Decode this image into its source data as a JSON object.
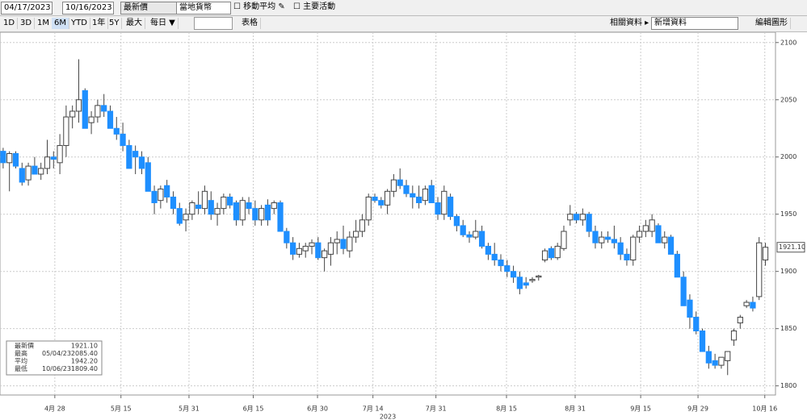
{
  "toolbar": {
    "start_date": "04/17/2023",
    "end_date": "10/16/2023",
    "field": "最新價",
    "currency": "當地貨幣",
    "moving_avg": "移動平均",
    "events": "主要活動",
    "ranges": [
      "1D",
      "3D",
      "1M",
      "6M",
      "YTD",
      "1年",
      "5Y",
      "最大"
    ],
    "frequency": "每日 ▼",
    "table": "表格",
    "related": "相關資料 ▸",
    "add_data": "新增資料",
    "edit": "編輯圖形"
  },
  "chart_data": {
    "type": "candlestick",
    "up_color": "#ffffff",
    "down_color": "#1e8fff",
    "grid": true,
    "xlim": [
      -0.5,
      122.6
    ],
    "ylim": [
      1792,
      2109
    ],
    "yticks": [
      1800,
      1850,
      1900,
      1950,
      2000,
      2050,
      2100
    ],
    "xticks": [
      {
        "value": 8.2,
        "label": "4月 28"
      },
      {
        "value": 18.7,
        "label": "5月 15"
      },
      {
        "value": 29.5,
        "label": "5月 31"
      },
      {
        "value": 39.7,
        "label": "6月 15"
      },
      {
        "value": 49.9,
        "label": "6月 30"
      },
      {
        "value": 58.7,
        "label": "7月 14"
      },
      {
        "value": 68.7,
        "label": "7月 31"
      },
      {
        "value": 79.9,
        "label": "8月 15"
      },
      {
        "value": 90.8,
        "label": "8月 31"
      },
      {
        "value": 101.2,
        "label": "9月 15"
      },
      {
        "value": 110.3,
        "label": "9月 29"
      },
      {
        "value": 120.9,
        "label": "10月 16"
      }
    ],
    "x_year": "2023",
    "last_label": {
      "value": 1921.1,
      "label": "1921.10"
    },
    "legend": [
      {
        "name": "最新價",
        "date": null,
        "value": {
          "value": 1921.1,
          "label": "1921.10"
        }
      },
      {
        "name": "最高",
        "date": "05/04/23",
        "value": {
          "value": 2085.4,
          "label": "2085.40"
        }
      },
      {
        "name": "平均",
        "date": null,
        "value": {
          "value": 1942.2,
          "label": "1942.20"
        }
      },
      {
        "name": "最低",
        "date": "10/06/23",
        "value": {
          "value": 1809.4,
          "label": "1809.40"
        }
      }
    ],
    "ohlc": [
      [
        2005,
        2008,
        1990,
        1995
      ],
      [
        1995,
        2005,
        1970,
        2003
      ],
      [
        2003,
        2005,
        1990,
        1992
      ],
      [
        1990,
        1995,
        1975,
        1978
      ],
      [
        1980,
        1995,
        1975,
        1992
      ],
      [
        1992,
        2000,
        1985,
        1985
      ],
      [
        1985,
        1995,
        1980,
        1990
      ],
      [
        1990,
        2015,
        1985,
        2000
      ],
      [
        2000,
        2005,
        1990,
        1998
      ],
      [
        1995,
        2020,
        1985,
        2010
      ],
      [
        2010,
        2045,
        2000,
        2035
      ],
      [
        2035,
        2045,
        2025,
        2040
      ],
      [
        2040,
        2085.4,
        2030,
        2050
      ],
      [
        2058,
        2060,
        2025,
        2025
      ],
      [
        2030,
        2040,
        2020,
        2035
      ],
      [
        2035,
        2050,
        2030,
        2045
      ],
      [
        2045,
        2055,
        2035,
        2040
      ],
      [
        2040,
        2045,
        2025,
        2025
      ],
      [
        2025,
        2035,
        2015,
        2020
      ],
      [
        2020,
        2030,
        2005,
        2010
      ],
      [
        2010,
        2015,
        1990,
        1990
      ],
      [
        2005,
        2010,
        1985,
        2000
      ],
      [
        2000,
        2005,
        1985,
        1990
      ],
      [
        1995,
        2000,
        1970,
        1970
      ],
      [
        1970,
        1975,
        1950,
        1960
      ],
      [
        1962,
        1975,
        1955,
        1972
      ],
      [
        1975,
        1980,
        1960,
        1965
      ],
      [
        1965,
        1970,
        1950,
        1955
      ],
      [
        1955,
        1960,
        1940,
        1942
      ],
      [
        1945,
        1955,
        1935,
        1950
      ],
      [
        1950,
        1962,
        1945,
        1960
      ],
      [
        1958,
        1970,
        1950,
        1955
      ],
      [
        1955,
        1975,
        1950,
        1970
      ],
      [
        1962,
        1970,
        1945,
        1950
      ],
      [
        1950,
        1960,
        1940,
        1955
      ],
      [
        1955,
        1968,
        1950,
        1965
      ],
      [
        1965,
        1968,
        1955,
        1958
      ],
      [
        1960,
        1962,
        1940,
        1945
      ],
      [
        1945,
        1965,
        1940,
        1962
      ],
      [
        1960,
        1965,
        1950,
        1955
      ],
      [
        1955,
        1962,
        1940,
        1945
      ],
      [
        1945,
        1958,
        1940,
        1955
      ],
      [
        1958,
        1963,
        1940,
        1945
      ],
      [
        1955,
        1962,
        1950,
        1960
      ],
      [
        1960,
        1962,
        1935,
        1935
      ],
      [
        1935,
        1938,
        1920,
        1925
      ],
      [
        1925,
        1930,
        1910,
        1915
      ],
      [
        1915,
        1925,
        1912,
        1920
      ],
      [
        1918,
        1925,
        1912,
        1922
      ],
      [
        1922,
        1928,
        1915,
        1925
      ],
      [
        1925,
        1930,
        1910,
        1912
      ],
      [
        1912,
        1920,
        1900,
        1918
      ],
      [
        1915,
        1930,
        1905,
        1925
      ],
      [
        1925,
        1935,
        1915,
        1928
      ],
      [
        1928,
        1940,
        1915,
        1920
      ],
      [
        1918,
        1935,
        1912,
        1930
      ],
      [
        1930,
        1945,
        1925,
        1935
      ],
      [
        1935,
        1950,
        1930,
        1945
      ],
      [
        1945,
        1968,
        1940,
        1965
      ],
      [
        1965,
        1968,
        1960,
        1962
      ],
      [
        1962,
        1965,
        1955,
        1958
      ],
      [
        1958,
        1972,
        1950,
        1970
      ],
      [
        1970,
        1985,
        1965,
        1980
      ],
      [
        1980,
        1990,
        1972,
        1975
      ],
      [
        1975,
        1980,
        1965,
        1968
      ],
      [
        1968,
        1975,
        1955,
        1965
      ],
      [
        1965,
        1975,
        1955,
        1960
      ],
      [
        1962,
        1975,
        1958,
        1972
      ],
      [
        1975,
        1980,
        1960,
        1960
      ],
      [
        1960,
        1965,
        1945,
        1950
      ],
      [
        1950,
        1975,
        1945,
        1970
      ],
      [
        1965,
        1968,
        1945,
        1948
      ],
      [
        1948,
        1950,
        1935,
        1940
      ],
      [
        1940,
        1945,
        1930,
        1932
      ],
      [
        1932,
        1935,
        1925,
        1930
      ],
      [
        1930,
        1945,
        1928,
        1935
      ],
      [
        1935,
        1940,
        1920,
        1922
      ],
      [
        1922,
        1925,
        1910,
        1915
      ],
      [
        1915,
        1925,
        1905,
        1910
      ],
      [
        1910,
        1915,
        1900,
        1905
      ],
      [
        1905,
        1910,
        1895,
        1900
      ],
      [
        1900,
        1905,
        1890,
        1895
      ],
      [
        1895,
        1900,
        1880,
        1885
      ],
      [
        1890,
        1895,
        1885,
        1888
      ],
      [
        1892,
        1895,
        1890,
        1893
      ],
      [
        1895,
        1897,
        1892,
        1896
      ],
      [
        1910,
        1920,
        1908,
        1918
      ],
      [
        1920,
        1922,
        1910,
        1912
      ],
      [
        1912,
        1925,
        1910,
        1922
      ],
      [
        1920,
        1940,
        1918,
        1935
      ],
      [
        1945,
        1958,
        1940,
        1950
      ],
      [
        1950,
        1952,
        1942,
        1945
      ],
      [
        1945,
        1955,
        1940,
        1950
      ],
      [
        1950,
        1952,
        1930,
        1935
      ],
      [
        1935,
        1940,
        1920,
        1925
      ],
      [
        1925,
        1935,
        1920,
        1930
      ],
      [
        1930,
        1935,
        1925,
        1928
      ],
      [
        1928,
        1940,
        1920,
        1925
      ],
      [
        1925,
        1930,
        1910,
        1915
      ],
      [
        1915,
        1920,
        1905,
        1910
      ],
      [
        1910,
        1932,
        1905,
        1930
      ],
      [
        1930,
        1940,
        1925,
        1935
      ],
      [
        1935,
        1945,
        1930,
        1940
      ],
      [
        1935,
        1950,
        1930,
        1945
      ],
      [
        1940,
        1942,
        1925,
        1925
      ],
      [
        1925,
        1935,
        1920,
        1930
      ],
      [
        1930,
        1932,
        1915,
        1915
      ],
      [
        1915,
        1918,
        1895,
        1895
      ],
      [
        1895,
        1900,
        1870,
        1870
      ],
      [
        1875,
        1880,
        1850,
        1860
      ],
      [
        1860,
        1865,
        1845,
        1848
      ],
      [
        1848,
        1850,
        1830,
        1830
      ],
      [
        1830,
        1835,
        1815,
        1820
      ],
      [
        1822,
        1828,
        1815,
        1818
      ],
      [
        1818,
        1825,
        1815,
        1825
      ],
      [
        1822,
        1830,
        1809.4,
        1830
      ],
      [
        1840,
        1850,
        1835,
        1848
      ],
      [
        1855,
        1862,
        1850,
        1860
      ],
      [
        1870,
        1875,
        1868,
        1873
      ],
      [
        1873,
        1878,
        1865,
        1868
      ],
      [
        1878,
        1930,
        1875,
        1925
      ],
      [
        1910,
        1925,
        1905,
        1921.1
      ]
    ]
  }
}
